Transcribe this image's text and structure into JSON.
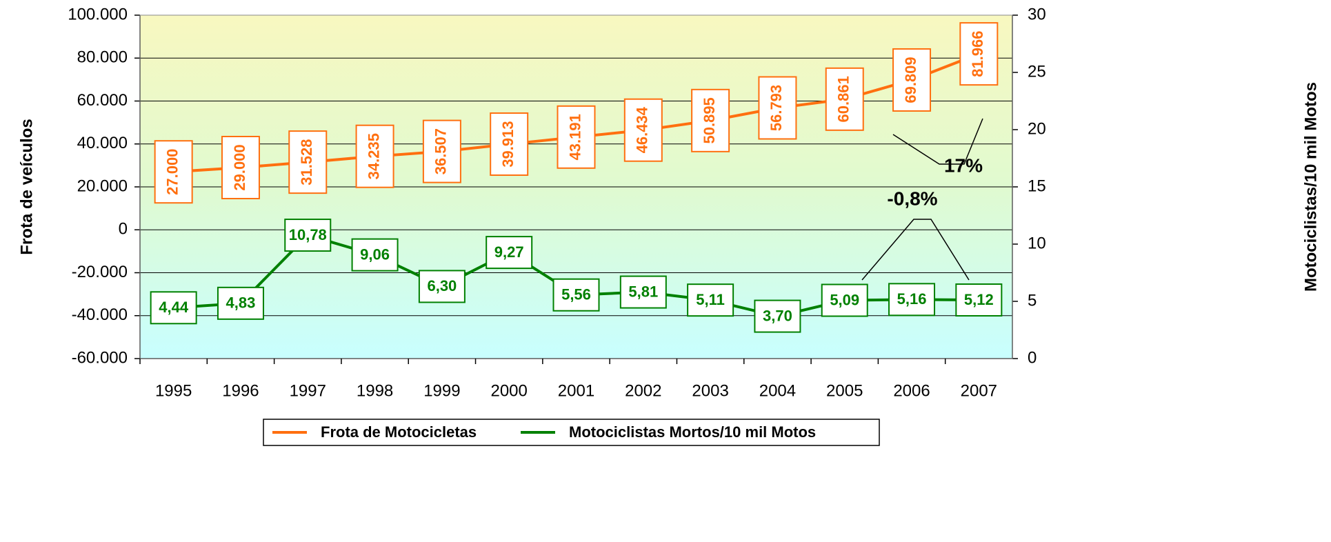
{
  "chart_data": {
    "type": "line",
    "ylabel": "Frota de veículos",
    "y2label": "Motociclistas/10 mil Motos",
    "categories": [
      "1995",
      "1996",
      "1997",
      "1998",
      "1999",
      "2000",
      "2001",
      "2002",
      "2003",
      "2004",
      "2005",
      "2006",
      "2007"
    ],
    "series": [
      {
        "name": "Frota de Motocicletas",
        "color": "#ff6f0f",
        "axis": "y",
        "values": [
          27000,
          29000,
          31528,
          34235,
          36507,
          39913,
          43191,
          46434,
          50895,
          56793,
          60861,
          69809,
          81966
        ],
        "value_labels": [
          "27.000",
          "29.000",
          "31.528",
          "34.235",
          "36.507",
          "39.913",
          "43.191",
          "46.434",
          "50.895",
          "56.793",
          "60.861",
          "69.809",
          "81.966"
        ]
      },
      {
        "name": "Motociclistas Mortos/10 mil Motos",
        "color": "#008000",
        "axis": "y2",
        "values": [
          4.44,
          4.83,
          10.78,
          9.06,
          6.3,
          9.27,
          5.56,
          5.81,
          5.11,
          3.7,
          5.09,
          5.16,
          5.12
        ],
        "value_labels": [
          "4,44",
          "4,83",
          "10,78",
          "9,06",
          "6,30",
          "9,27",
          "5,56",
          "5,81",
          "5,11",
          "3,70",
          "5,09",
          "5,16",
          "5,12"
        ]
      }
    ],
    "ylim": [
      -60000,
      100000
    ],
    "yticks": [
      {
        "value": -60000,
        "label": "-60.000"
      },
      {
        "value": -40000,
        "label": "-40.000"
      },
      {
        "value": -20000,
        "label": "-20.000"
      },
      0,
      {
        "value": 20000,
        "label": "20.000"
      },
      {
        "value": 40000,
        "label": "40.000"
      },
      {
        "value": 60000,
        "label": "60.000"
      },
      {
        "value": 80000,
        "label": "80.000"
      },
      {
        "value": 100000,
        "label": "100.000"
      }
    ],
    "y2lim": [
      0,
      30
    ],
    "y2ticks": [
      0,
      5,
      10,
      15,
      20,
      25,
      30
    ],
    "grid": true,
    "legend": "bottom",
    "annotations": [
      {
        "text": "17%"
      },
      {
        "text": "-0,8%"
      }
    ]
  }
}
